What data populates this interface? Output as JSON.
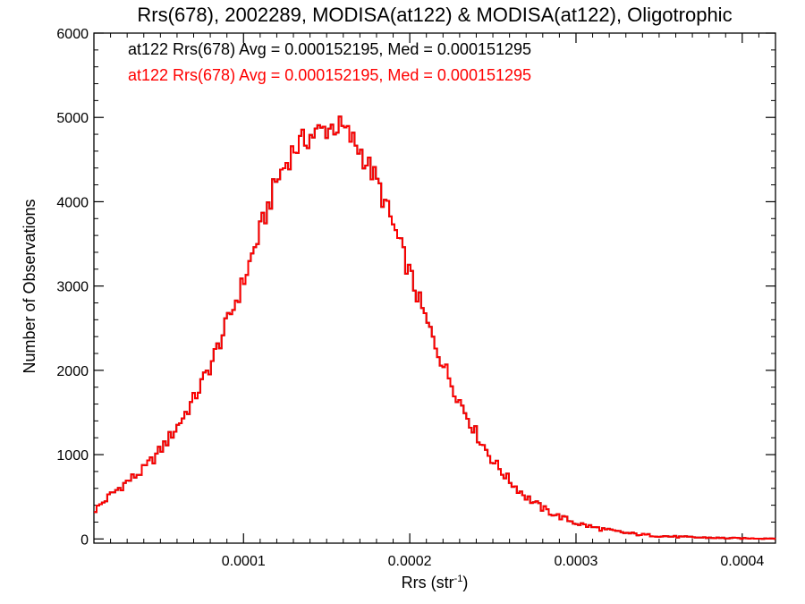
{
  "chart_data": {
    "type": "histogram",
    "title": "Rrs(678), 2002289, MODISA(at122) & MODISA(at122), Oligotrophic",
    "xlabel": "Rrs (str",
    "xlabel_sup": "-1",
    "xlabel_close": ")",
    "ylabel": "Number of Observations",
    "xlim": [
      1e-05,
      0.00042
    ],
    "ylim": [
      -50,
      6000
    ],
    "xticks": [
      0.0001,
      0.0002,
      0.0003,
      0.0004
    ],
    "xtick_labels": [
      "0.0001",
      "0.0002",
      "0.0003",
      "0.0004"
    ],
    "yticks": [
      0,
      1000,
      2000,
      3000,
      4000,
      5000,
      6000
    ],
    "ytick_labels": [
      "0",
      "1000",
      "2000",
      "3000",
      "4000",
      "5000",
      "6000"
    ],
    "grid": false,
    "bin_width": 1.6e-06,
    "series": [
      {
        "label": "at122 Rrs(678) Avg = 0.000152195, Med = 0.000151295",
        "color": "#000000",
        "profile": [
          [
            1e-05,
            330
          ],
          [
            2e-05,
            520
          ],
          [
            3e-05,
            680
          ],
          [
            4e-05,
            820
          ],
          [
            5e-05,
            1050
          ],
          [
            6e-05,
            1330
          ],
          [
            7e-05,
            1650
          ],
          [
            8e-05,
            2050
          ],
          [
            9e-05,
            2550
          ],
          [
            0.0001,
            3050
          ],
          [
            0.00011,
            3650
          ],
          [
            0.00012,
            4250
          ],
          [
            0.00013,
            4620
          ],
          [
            0.00014,
            4780
          ],
          [
            0.00015,
            4870
          ],
          [
            0.000155,
            4900
          ],
          [
            0.00016,
            4860
          ],
          [
            0.00017,
            4620
          ],
          [
            0.00018,
            4250
          ],
          [
            0.00019,
            3720
          ],
          [
            0.0002,
            3150
          ],
          [
            0.00021,
            2580
          ],
          [
            0.00022,
            2080
          ],
          [
            0.00023,
            1640
          ],
          [
            0.00024,
            1250
          ],
          [
            0.00025,
            930
          ],
          [
            0.00026,
            690
          ],
          [
            0.00027,
            500
          ],
          [
            0.00028,
            360
          ],
          [
            0.00029,
            265
          ],
          [
            0.0003,
            190
          ],
          [
            0.00031,
            140
          ],
          [
            0.00032,
            100
          ],
          [
            0.00033,
            70
          ],
          [
            0.00034,
            50
          ],
          [
            0.00035,
            36
          ],
          [
            0.00036,
            26
          ],
          [
            0.00037,
            19
          ],
          [
            0.00038,
            14
          ],
          [
            0.00039,
            10
          ],
          [
            0.0004,
            7
          ],
          [
            0.00042,
            5
          ]
        ]
      },
      {
        "label": "at122 Rrs(678) Avg = 0.000152195, Med = 0.000151295",
        "color": "#ff0000",
        "profile": [
          [
            1e-05,
            330
          ],
          [
            2e-05,
            520
          ],
          [
            3e-05,
            680
          ],
          [
            4e-05,
            820
          ],
          [
            5e-05,
            1050
          ],
          [
            6e-05,
            1330
          ],
          [
            7e-05,
            1650
          ],
          [
            8e-05,
            2050
          ],
          [
            9e-05,
            2550
          ],
          [
            0.0001,
            3050
          ],
          [
            0.00011,
            3650
          ],
          [
            0.00012,
            4250
          ],
          [
            0.00013,
            4620
          ],
          [
            0.00014,
            4780
          ],
          [
            0.00015,
            4870
          ],
          [
            0.000155,
            4900
          ],
          [
            0.00016,
            4860
          ],
          [
            0.00017,
            4620
          ],
          [
            0.00018,
            4250
          ],
          [
            0.00019,
            3720
          ],
          [
            0.0002,
            3150
          ],
          [
            0.00021,
            2580
          ],
          [
            0.00022,
            2080
          ],
          [
            0.00023,
            1640
          ],
          [
            0.00024,
            1250
          ],
          [
            0.00025,
            930
          ],
          [
            0.00026,
            690
          ],
          [
            0.00027,
            500
          ],
          [
            0.00028,
            360
          ],
          [
            0.00029,
            265
          ],
          [
            0.0003,
            190
          ],
          [
            0.00031,
            140
          ],
          [
            0.00032,
            100
          ],
          [
            0.00033,
            70
          ],
          [
            0.00034,
            50
          ],
          [
            0.00035,
            36
          ],
          [
            0.00036,
            26
          ],
          [
            0.00037,
            19
          ],
          [
            0.00038,
            14
          ],
          [
            0.00039,
            10
          ],
          [
            0.0004,
            7
          ],
          [
            0.00042,
            5
          ]
        ]
      }
    ],
    "legend_position": "top-left"
  }
}
